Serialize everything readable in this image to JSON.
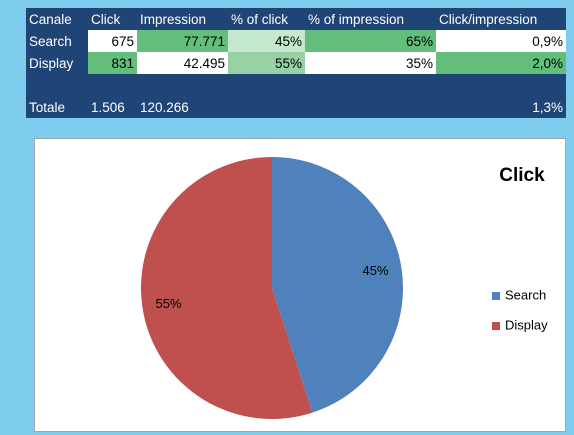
{
  "table": {
    "header": [
      "Canale",
      "Click",
      "Impression",
      "% of click",
      "% of impression",
      "Click/impression"
    ],
    "rows": [
      [
        "Search",
        "675",
        "77.771",
        "45%",
        "65%",
        "0,9%"
      ],
      [
        "Display",
        "831",
        "42.495",
        "55%",
        "35%",
        "2,0%"
      ]
    ],
    "total": {
      "label": "Totale",
      "click": "1.506",
      "impression": "120.266",
      "click_impression": "1,3%"
    }
  },
  "chart_data": {
    "type": "pie",
    "title": "Click",
    "categories": [
      "Search",
      "Display"
    ],
    "values": [
      45,
      55
    ],
    "value_labels": [
      "45%",
      "55%"
    ],
    "colors": [
      "#4f81bd",
      "#c0504d"
    ],
    "legend": "right"
  }
}
